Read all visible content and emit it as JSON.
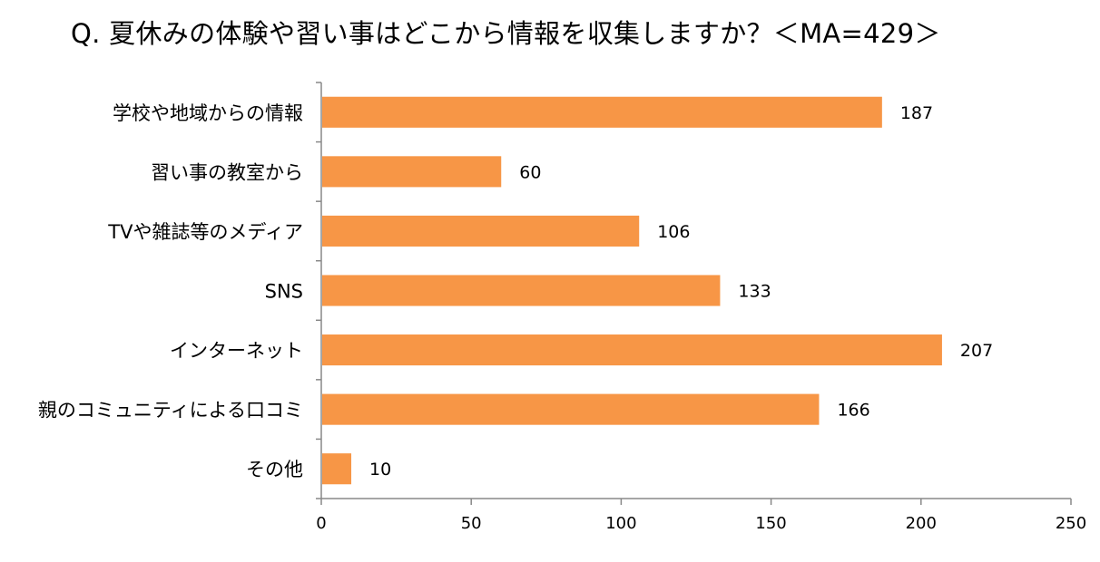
{
  "title": "Q. 夏休みの体験や習い事はどこから情報を収集しますか？＜MA=429＞",
  "chart_data": {
    "type": "bar",
    "orientation": "horizontal",
    "title": "Q. 夏休みの体験や習い事はどこから情報を収集しますか？＜MA=429＞",
    "categories": [
      "学校や地域からの情報",
      "習い事の教室から",
      "TVや雑誌等のメディア",
      "SNS",
      "インターネット",
      "親のコミュニティによる口コミ",
      "その他"
    ],
    "values": [
      187,
      60,
      106,
      133,
      207,
      166,
      10
    ],
    "xlim": [
      0,
      250
    ],
    "xticks": [
      0,
      50,
      100,
      150,
      200,
      250
    ],
    "bar_color": "#F79646",
    "grid": false,
    "legend": "none"
  }
}
